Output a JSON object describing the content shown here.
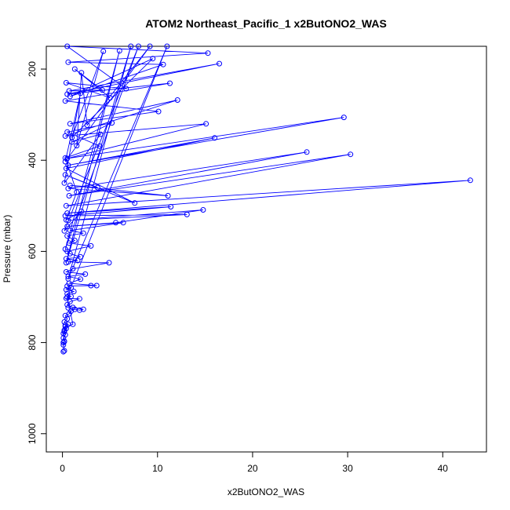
{
  "chart_data": {
    "type": "line",
    "title": "ATOM2 Northeast_Pacific_1 x2ButONO2_WAS",
    "xlabel": "x2ButONO2_WAS",
    "ylabel": "Pressure (mbar)",
    "xlim": [
      -1.7,
      44.6
    ],
    "ylim": [
      1040,
      150
    ],
    "y_inverted": true,
    "x_ticks": [
      0,
      10,
      20,
      30,
      40
    ],
    "y_ticks": [
      200,
      400,
      600,
      800,
      1000
    ],
    "grid": false,
    "marker": "open-circle",
    "series": [
      {
        "color": "#0000ff",
        "points": [
          [
            0.1,
            820
          ],
          [
            0.2,
            818
          ],
          [
            0.1,
            805
          ],
          [
            0.2,
            798
          ],
          [
            0.1,
            790
          ],
          [
            0.3,
            783
          ],
          [
            0.2,
            776
          ],
          [
            0.4,
            769
          ],
          [
            0.3,
            762
          ],
          [
            0.6,
            760
          ],
          [
            0.2,
            755
          ],
          [
            0.5,
            748
          ],
          [
            0.3,
            741
          ],
          [
            0.7,
            737
          ],
          [
            0.9,
            731
          ],
          [
            1.3,
            727
          ],
          [
            0.6,
            724
          ],
          [
            1.8,
            729
          ],
          [
            2.2,
            727
          ],
          [
            1.1,
            723
          ],
          [
            0.5,
            717
          ],
          [
            0.8,
            710
          ],
          [
            1.8,
            704
          ],
          [
            0.4,
            703
          ],
          [
            0.9,
            699
          ],
          [
            0.5,
            693
          ],
          [
            1.2,
            688
          ],
          [
            0.4,
            684
          ],
          [
            0.9,
            680
          ],
          [
            0.5,
            676
          ],
          [
            3.0,
            675
          ],
          [
            3.6,
            675
          ],
          [
            0.7,
            670
          ],
          [
            1.9,
            661
          ],
          [
            0.6,
            655
          ],
          [
            2.4,
            650
          ],
          [
            0.4,
            645
          ],
          [
            1.1,
            638
          ],
          [
            4.9,
            625
          ],
          [
            0.6,
            623
          ],
          [
            1.6,
            620
          ],
          [
            0.4,
            616
          ],
          [
            1.9,
            612
          ],
          [
            0.8,
            605
          ],
          [
            0.5,
            600
          ],
          [
            3.0,
            588
          ],
          [
            0.7,
            582
          ],
          [
            1.3,
            576
          ],
          [
            0.5,
            566
          ],
          [
            2.2,
            560
          ],
          [
            0.8,
            554
          ],
          [
            6.4,
            537
          ],
          [
            0.5,
            545
          ],
          [
            5.6,
            537
          ],
          [
            14.8,
            509
          ],
          [
            0.6,
            532
          ],
          [
            13.1,
            519
          ],
          [
            0.3,
            522
          ],
          [
            11.4,
            502
          ],
          [
            0.5,
            516
          ],
          [
            42.9,
            444
          ],
          [
            0.4,
            500
          ],
          [
            30.3,
            387
          ],
          [
            0.7,
            478
          ],
          [
            25.7,
            382
          ],
          [
            0.6,
            462
          ],
          [
            11.1,
            478
          ],
          [
            0.8,
            455
          ],
          [
            3.7,
            460
          ],
          [
            0.3,
            432
          ],
          [
            7.6,
            494
          ],
          [
            0.4,
            418
          ],
          [
            16.0,
            351
          ],
          [
            0.6,
            411
          ],
          [
            29.6,
            306
          ],
          [
            0.5,
            396
          ],
          [
            15.1,
            320
          ],
          [
            0.3,
            347
          ],
          [
            12.1,
            268
          ],
          [
            0.8,
            320
          ],
          [
            10.1,
            293
          ],
          [
            0.3,
            270
          ],
          [
            11.3,
            231
          ],
          [
            0.5,
            255
          ],
          [
            16.5,
            188
          ],
          [
            0.7,
            248
          ],
          [
            4.2,
            246
          ],
          [
            1.3,
            200
          ],
          [
            5.0,
            263
          ],
          [
            0.4,
            230
          ],
          [
            6.7,
            243
          ],
          [
            0.5,
            150
          ],
          [
            15.3,
            165
          ],
          [
            0.6,
            185
          ],
          [
            10.6,
            190
          ],
          [
            0.8,
            260
          ],
          [
            9.5,
            177
          ],
          [
            1.0,
            350
          ],
          [
            4.3,
            161
          ],
          [
            1.5,
            368
          ],
          [
            2.0,
            208
          ],
          [
            2.6,
            323
          ],
          [
            9.2,
            150
          ],
          [
            0.3,
            403
          ],
          [
            1.9,
            253
          ],
          [
            0.2,
            450
          ],
          [
            4.0,
            343
          ],
          [
            1.0,
            360
          ],
          [
            5.2,
            318
          ],
          [
            0.5,
            338
          ],
          [
            3.9,
            369
          ],
          [
            0.3,
            395
          ],
          [
            1.5,
            470
          ],
          [
            0.4,
            531
          ],
          [
            2.0,
            512
          ],
          [
            0.2,
            555
          ],
          [
            8.0,
            150
          ],
          [
            0.3,
            595
          ],
          [
            6.0,
            160
          ],
          [
            0.4,
            625
          ],
          [
            7.2,
            150
          ],
          [
            0.6,
            660
          ],
          [
            11.0,
            150
          ],
          [
            0.5,
            700
          ],
          [
            1.1,
            760
          ],
          [
            0.3,
            765
          ],
          [
            0.2,
            773
          ],
          [
            0.1,
            780
          ],
          [
            0.2,
            797
          ],
          [
            0.1,
            800
          ]
        ]
      }
    ]
  }
}
